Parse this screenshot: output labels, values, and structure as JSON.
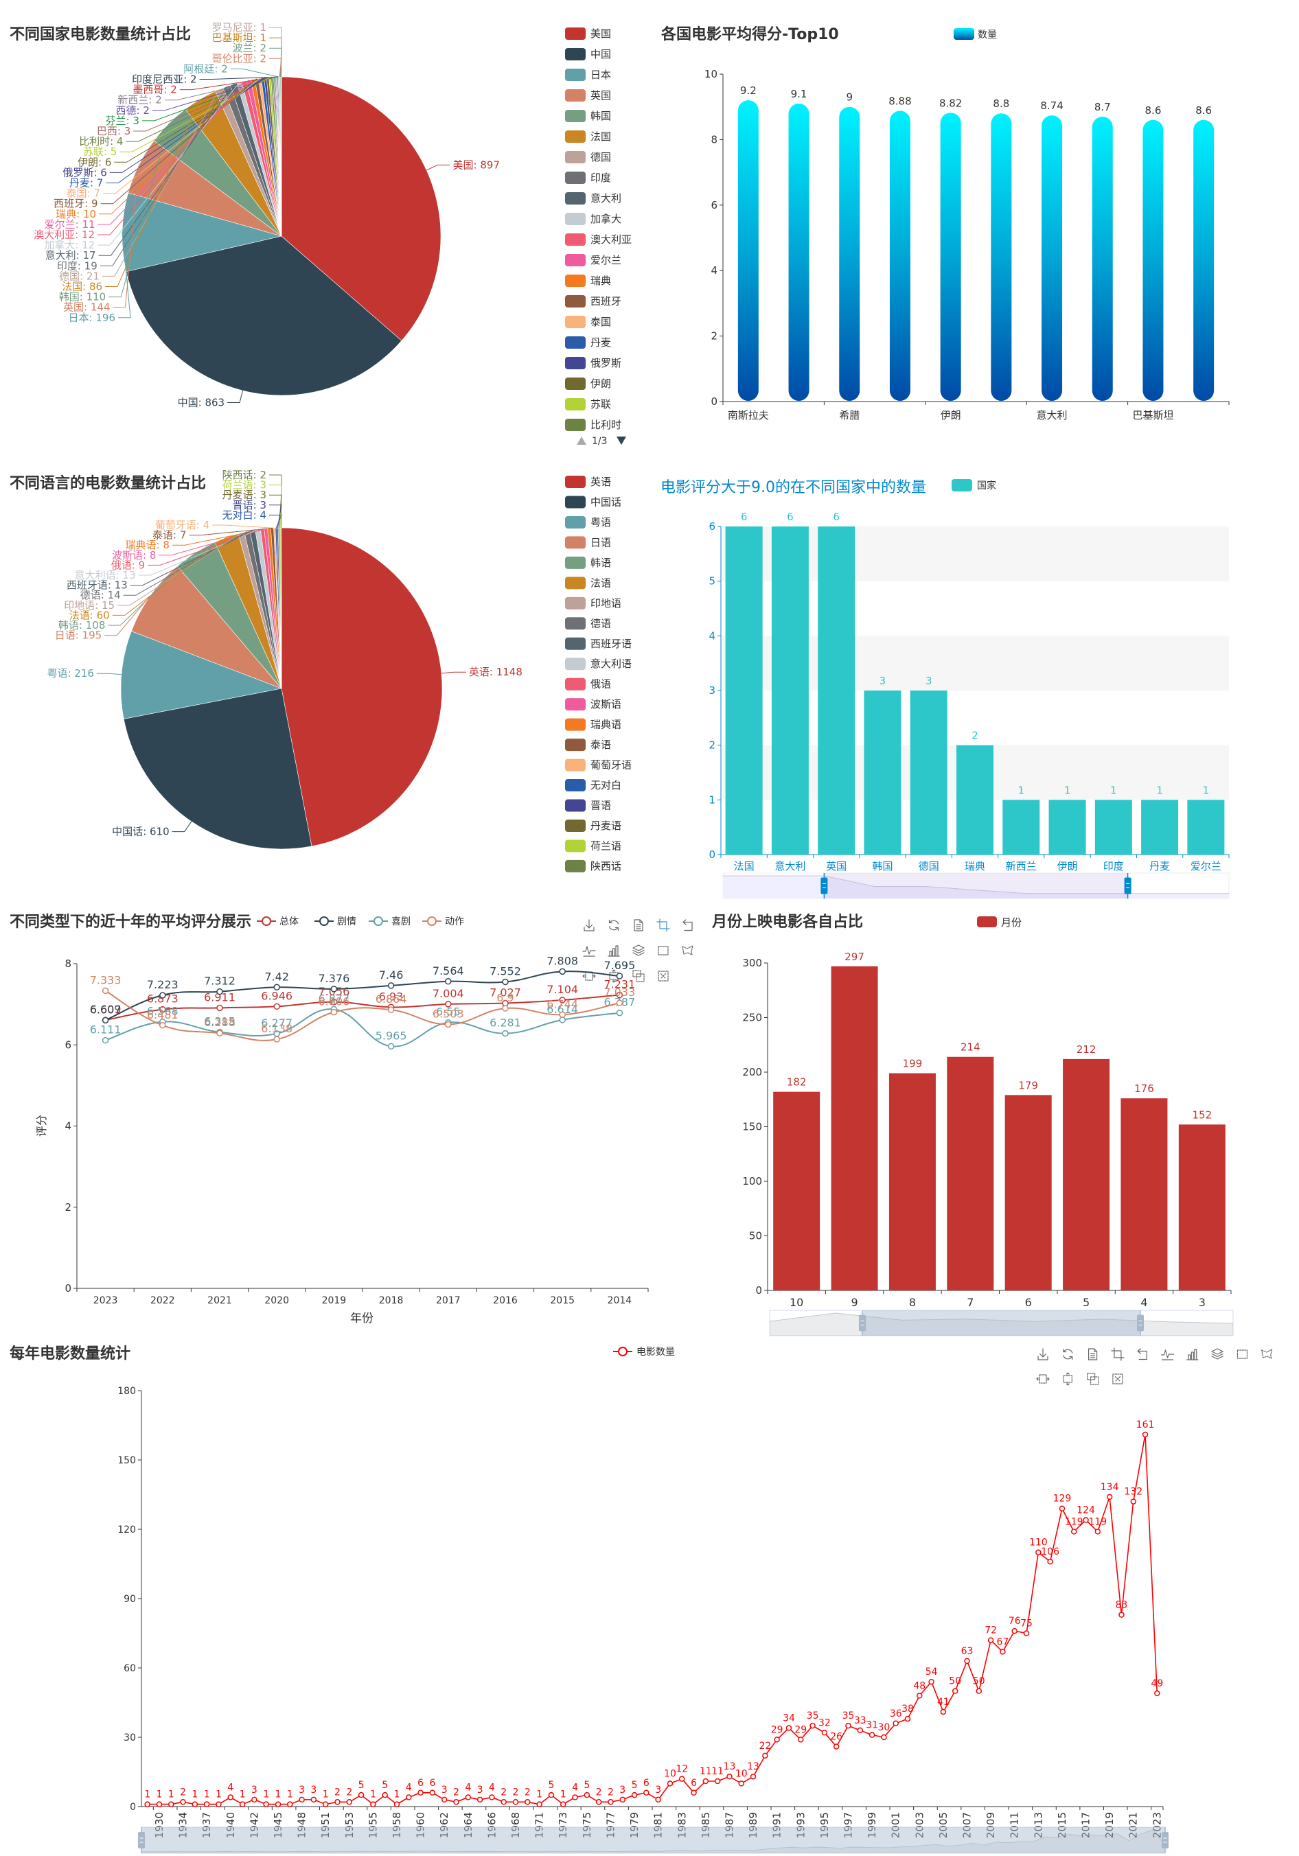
{
  "palette": [
    "#c23531",
    "#2f4554",
    "#61a0a8",
    "#d48265",
    "#749f83",
    "#ca8622",
    "#bda29a",
    "#6e7074",
    "#546570",
    "#c4ccd3",
    "#f05b72",
    "#ef5b9c",
    "#f47920",
    "#905a3d",
    "#fab27b",
    "#2a5caa",
    "#444693",
    "#726930",
    "#b2d235",
    "#6d8346",
    "#ac6767",
    "#1d953f",
    "#6950a1",
    "#918597"
  ],
  "toolbox": {
    "icon_color": "#666666",
    "active_color": "#3e98c5",
    "items": [
      {
        "id": "save-as-image",
        "icon": "download-icon"
      },
      {
        "id": "restore",
        "icon": "refresh-icon"
      },
      {
        "id": "data-view",
        "icon": "data-view-icon"
      },
      {
        "id": "data-zoom",
        "icon": "zoom-icon"
      },
      {
        "id": "data-zoom-back",
        "icon": "zoom-back-icon"
      },
      {
        "id": "magic-line",
        "icon": "line-chart-icon"
      },
      {
        "id": "magic-bar",
        "icon": "bar-chart-icon"
      },
      {
        "id": "magic-stack",
        "icon": "stack-icon"
      },
      {
        "id": "brush-rect",
        "icon": "rect-select-icon"
      },
      {
        "id": "brush-polygon",
        "icon": "polygon-select-icon"
      },
      {
        "id": "brush-line-x",
        "icon": "horizontal-select-icon"
      },
      {
        "id": "brush-line-y",
        "icon": "vertical-select-icon"
      },
      {
        "id": "brush-keep",
        "icon": "keep-select-icon"
      },
      {
        "id": "brush-clear",
        "icon": "clear-select-icon"
      }
    ]
  },
  "chart_data": [
    {
      "id": "country-pie",
      "type": "pie",
      "title": "不同国家电影数量统计占比",
      "label_separator": ": ",
      "series": [
        {
          "name": "美国",
          "value": 897
        },
        {
          "name": "中国",
          "value": 863
        },
        {
          "name": "日本",
          "value": 196
        },
        {
          "name": "英国",
          "value": 144
        },
        {
          "name": "韩国",
          "value": 110
        },
        {
          "name": "法国",
          "value": 86
        },
        {
          "name": "德国",
          "value": 21
        },
        {
          "name": "印度",
          "value": 19
        },
        {
          "name": "意大利",
          "value": 17
        },
        {
          "name": "加拿大",
          "value": 12
        },
        {
          "name": "澳大利亚",
          "value": 12
        },
        {
          "name": "爱尔兰",
          "value": 11
        },
        {
          "name": "瑞典",
          "value": 10
        },
        {
          "name": "西班牙",
          "value": 9
        },
        {
          "name": "泰国",
          "value": 7
        },
        {
          "name": "丹麦",
          "value": 7
        },
        {
          "name": "俄罗斯",
          "value": 6
        },
        {
          "name": "伊朗",
          "value": 6
        },
        {
          "name": "苏联",
          "value": 5
        },
        {
          "name": "比利时",
          "value": 4
        },
        {
          "name": "巴西",
          "value": 3
        },
        {
          "name": "芬兰",
          "value": 3
        },
        {
          "name": "西德",
          "value": 2
        },
        {
          "name": "新西兰",
          "value": 2
        },
        {
          "name": "墨西哥",
          "value": 2
        },
        {
          "name": "印度尼西亚",
          "value": 2
        },
        {
          "name": "阿根廷",
          "value": 2
        },
        {
          "name": "哥伦比亚",
          "value": 2
        },
        {
          "name": "波兰",
          "value": 2
        },
        {
          "name": "巴基斯坦",
          "value": 1
        },
        {
          "name": "罗马尼亚",
          "value": 1
        }
      ],
      "legend": {
        "visible_count": 20,
        "page": "1/3",
        "placement": "right"
      }
    },
    {
      "id": "top10-bar",
      "type": "bar",
      "title": "各国电影平均得分-Top10",
      "legend": [
        "数量"
      ],
      "categories": [
        "南斯拉夫",
        null,
        "希腊",
        null,
        "伊朗",
        null,
        "意大利",
        null,
        "巴基斯坦",
        null
      ],
      "values": [
        9.2,
        9.1,
        9,
        8.88,
        8.82,
        8.8,
        8.74,
        8.7,
        8.6,
        8.6
      ],
      "xlabel": "",
      "ylabel": "",
      "ylim": [
        0,
        10
      ],
      "yticks": [
        0,
        2,
        4,
        6,
        8,
        10
      ],
      "colors": {
        "gradient_top": "#00f2ff",
        "gradient_bottom": "#004aa6"
      }
    },
    {
      "id": "language-pie",
      "type": "pie",
      "title": "不同语言的电影数量统计占比",
      "label_separator": ": ",
      "series": [
        {
          "name": "英语",
          "value": 1148
        },
        {
          "name": "中国话",
          "value": 610
        },
        {
          "name": "粤语",
          "value": 216
        },
        {
          "name": "日语",
          "value": 195
        },
        {
          "name": "韩语",
          "value": 108
        },
        {
          "name": "法语",
          "value": 60
        },
        {
          "name": "印地语",
          "value": 15
        },
        {
          "name": "德语",
          "value": 14
        },
        {
          "name": "西班牙语",
          "value": 13
        },
        {
          "name": "意大利语",
          "value": 13
        },
        {
          "name": "俄语",
          "value": 9
        },
        {
          "name": "波斯语",
          "value": 8
        },
        {
          "name": "瑞典语",
          "value": 8
        },
        {
          "name": "泰语",
          "value": 7
        },
        {
          "name": "葡萄牙语",
          "value": 4
        },
        {
          "name": "无对白",
          "value": 4
        },
        {
          "name": "晋语",
          "value": 3
        },
        {
          "name": "丹麦语",
          "value": 3
        },
        {
          "name": "荷兰语",
          "value": 3
        },
        {
          "name": "陕西话",
          "value": 2
        }
      ],
      "legend": {
        "visible_count": 20,
        "placement": "right"
      }
    },
    {
      "id": "score9-bar",
      "type": "bar",
      "title": "电影评分大于9.0的在不同国家中的数量",
      "legend": [
        "国家"
      ],
      "categories": [
        "法国",
        "意大利",
        "英国",
        "韩国",
        "德国",
        "瑞典",
        "新西兰",
        "伊朗",
        "印度",
        "丹麦",
        "爱尔兰"
      ],
      "values": [
        6,
        6,
        6,
        3,
        3,
        2,
        1,
        1,
        1,
        1,
        1
      ],
      "xlabel": "",
      "ylabel": "",
      "ylim": [
        0,
        6
      ],
      "yticks": [
        0,
        1,
        2,
        3,
        4,
        5,
        6
      ],
      "data_zoom": {
        "start_percent": 20,
        "end_percent": 80
      },
      "colors": {
        "bar": "#2ec7c9",
        "axis": "#008acd",
        "title": "#008acd"
      }
    },
    {
      "id": "genre-line",
      "type": "line",
      "title": "不同类型下的近十年的平均评分展示",
      "categories": [
        "2023",
        "2022",
        "2021",
        "2020",
        "2019",
        "2018",
        "2017",
        "2016",
        "2015",
        "2014"
      ],
      "series": [
        {
          "name": "总体",
          "values": [
            6.609,
            6.873,
            6.911,
            6.946,
            7.056,
            6.93,
            7.004,
            7.027,
            7.104,
            7.231
          ]
        },
        {
          "name": "剧情",
          "values": [
            6.607,
            7.223,
            7.312,
            7.42,
            7.376,
            7.46,
            7.564,
            7.552,
            7.808,
            7.695
          ]
        },
        {
          "name": "喜剧",
          "values": [
            6.111,
            6.568,
            6.315,
            6.277,
            6.877,
            5.965,
            6.55,
            6.281,
            6.614,
            6.787
          ]
        },
        {
          "name": "动作",
          "values": [
            7.333,
            6.481,
            6.288,
            6.138,
            6.806,
            6.864,
            6.503,
            6.9,
            6.744,
            7.033
          ]
        }
      ],
      "xlabel": "年份",
      "ylabel": "评分",
      "ylim": [
        0,
        8
      ],
      "yticks": [
        0,
        2,
        4,
        6,
        8
      ],
      "smooth": true,
      "legend_placement": "top",
      "toolbox_active": "data-zoom"
    },
    {
      "id": "month-bar",
      "type": "bar",
      "title": "月份上映电影各自占比",
      "legend": [
        "月份"
      ],
      "categories": [
        "10",
        "9",
        "8",
        "7",
        "6",
        "5",
        "4",
        "3"
      ],
      "values": [
        182,
        297,
        199,
        214,
        179,
        212,
        176,
        152
      ],
      "xlabel": "",
      "ylabel": "",
      "ylim": [
        0,
        300
      ],
      "yticks": [
        0,
        50,
        100,
        150,
        200,
        250,
        300
      ],
      "data_zoom": {
        "start_percent": 20,
        "end_percent": 80
      },
      "colors": {
        "bar": "#c23531"
      }
    },
    {
      "id": "yearly-line",
      "type": "line",
      "title": "每年电影数量统计",
      "legend": [
        "电影数量"
      ],
      "x": [
        null,
        1930,
        null,
        1934,
        null,
        1937,
        null,
        1940,
        1941,
        1942,
        null,
        1945,
        null,
        1948,
        null,
        1951,
        1952,
        1953,
        1954,
        1955,
        null,
        1958,
        1959,
        1960,
        1961,
        1962,
        1963,
        1964,
        1965,
        1966,
        1967,
        1968,
        null,
        1971,
        1972,
        1973,
        1974,
        1975,
        1976,
        1977,
        1978,
        1979,
        1980,
        1981,
        1982,
        1983,
        1984,
        1985,
        1986,
        1987,
        1988,
        1989,
        1990,
        1991,
        1992,
        1993,
        1994,
        1995,
        1996,
        1997,
        1998,
        1999,
        2000,
        2001,
        2002,
        2003,
        2004,
        2005,
        2006,
        2007,
        2008,
        2009,
        2010,
        2011,
        2012,
        2013,
        2014,
        2015,
        2016,
        2017,
        2018,
        2019,
        2020,
        2021,
        2022,
        2023
      ],
      "values": [
        1,
        1,
        1,
        2,
        1,
        1,
        1,
        4,
        1,
        3,
        1,
        1,
        1,
        3,
        3,
        1,
        2,
        2,
        5,
        1,
        5,
        1,
        4,
        6,
        6,
        3,
        2,
        4,
        3,
        4,
        2,
        2,
        2,
        1,
        5,
        1,
        4,
        5,
        2,
        2,
        3,
        5,
        6,
        3,
        10,
        12,
        6,
        11,
        11,
        13,
        10,
        13,
        22,
        29,
        34,
        29,
        35,
        32,
        26,
        35,
        33,
        31,
        30,
        36,
        38,
        48,
        54,
        41,
        50,
        63,
        50,
        72,
        67,
        76,
        75,
        110,
        106,
        129,
        119,
        124,
        119,
        134,
        83,
        132,
        161,
        49
      ],
      "xlabel": "",
      "ylabel": "",
      "ylim": [
        0,
        180
      ],
      "yticks": [
        0,
        30,
        60,
        90,
        120,
        150,
        180
      ],
      "data_zoom": {
        "start_percent": 0,
        "end_percent": 100
      },
      "colors": {
        "line": "#ff0000"
      }
    }
  ]
}
